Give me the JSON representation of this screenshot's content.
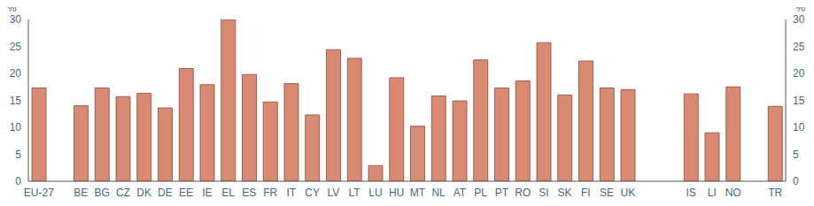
{
  "chart_data": {
    "type": "bar",
    "categories": [
      "EU-27",
      null,
      "BE",
      "BG",
      "CZ",
      "DK",
      "DE",
      "EE",
      "IE",
      "EL",
      "ES",
      "FR",
      "IT",
      "CY",
      "LV",
      "LT",
      "LU",
      "HU",
      "MT",
      "NL",
      "AT",
      "PL",
      "PT",
      "RO",
      "SI",
      "SK",
      "FI",
      "SE",
      "UK",
      null,
      null,
      "IS",
      "LI",
      "NO",
      null,
      "TR"
    ],
    "values": [
      17.3,
      null,
      14.0,
      17.3,
      15.7,
      16.3,
      13.6,
      20.9,
      17.9,
      30.0,
      19.8,
      14.7,
      18.1,
      12.3,
      24.4,
      22.8,
      2.9,
      19.2,
      10.2,
      15.8,
      14.9,
      22.5,
      17.3,
      18.6,
      25.7,
      16.0,
      22.3,
      17.3,
      17.0,
      null,
      null,
      16.2,
      9.0,
      17.5,
      null,
      13.9
    ],
    "color": "#d98a72",
    "ylabel": "%",
    "y2label": "%",
    "ylim": [
      0,
      30
    ],
    "yticks": [
      0,
      5,
      10,
      15,
      20,
      25,
      30
    ],
    "y2lim": [
      0,
      30
    ],
    "y2ticks": [
      0,
      5,
      10,
      15,
      20,
      25,
      30
    ],
    "grid": false
  }
}
